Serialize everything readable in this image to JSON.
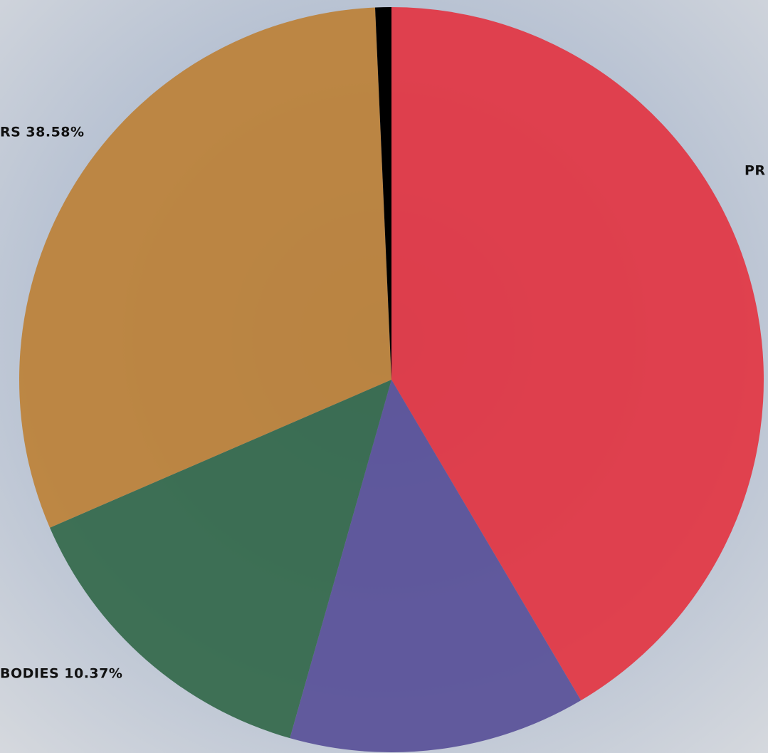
{
  "chart_data": {
    "type": "pie",
    "values": [
      41.5,
      12.9,
      14.1,
      30.8,
      0.7
    ],
    "colors": [
      "#e3323f",
      "#574e97",
      "#306647",
      "#bc8034",
      "#000000"
    ],
    "annotations": [
      "RS 38.58%",
      "PR",
      "BODIES 10.37%"
    ]
  }
}
